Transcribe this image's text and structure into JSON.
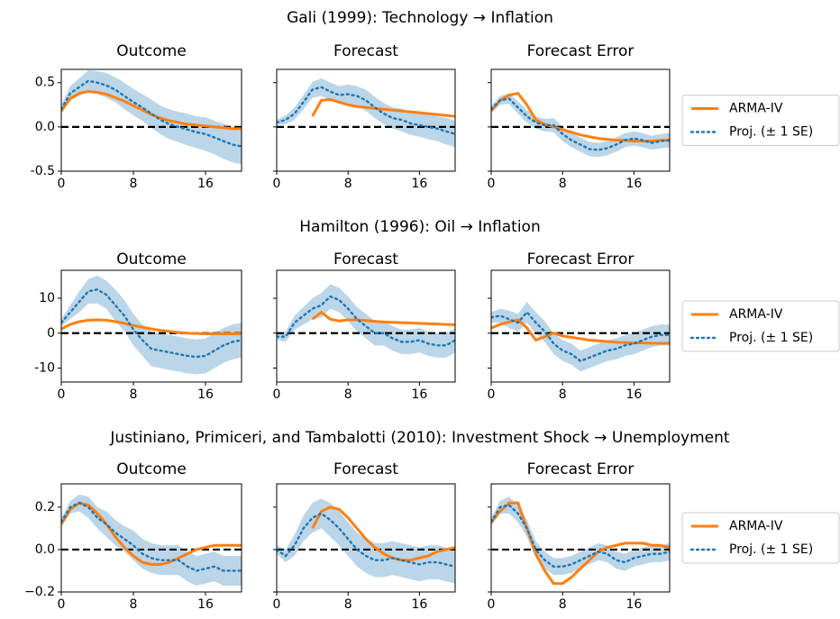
{
  "chart_data": [
    {
      "type": "line",
      "title": "Gali (1999): Technology → Inflation",
      "legend": "right",
      "reference_line": 0,
      "x": [
        0,
        1,
        2,
        3,
        4,
        5,
        6,
        7,
        8,
        9,
        10,
        11,
        12,
        13,
        14,
        15,
        16,
        17,
        18,
        19,
        20
      ],
      "xlim": [
        0,
        20
      ],
      "xticks": [
        0,
        8,
        16
      ],
      "ylim": [
        -0.5,
        0.65
      ],
      "yticks": [
        -0.5,
        {
          "value": 0,
          "label": "0.0"
        },
        0.5
      ],
      "series": [
        {
          "name": "ARMA-IV",
          "color": "#ff7f0e",
          "dashed": false
        },
        {
          "name": "Proj. (± 1 SE)",
          "color": "#1f77b4",
          "dashed": true
        }
      ],
      "panels": [
        {
          "title": "Outcome",
          "series": [
            {
              "values": [
                0.18,
                0.32,
                0.38,
                0.4,
                0.39,
                0.37,
                0.33,
                0.29,
                0.24,
                0.19,
                0.14,
                0.1,
                0.07,
                0.05,
                0.03,
                0.02,
                0.01,
                0.0,
                -0.01,
                -0.02,
                -0.02
              ]
            },
            {
              "values": [
                0.2,
                0.38,
                0.45,
                0.52,
                0.5,
                0.47,
                0.42,
                0.35,
                0.28,
                0.22,
                0.15,
                0.08,
                0.03,
                0.0,
                -0.03,
                -0.06,
                -0.08,
                -0.12,
                -0.16,
                -0.2,
                -0.22
              ],
              "se": [
                0.05,
                0.08,
                0.1,
                0.12,
                0.13,
                0.14,
                0.14,
                0.15,
                0.15,
                0.15,
                0.16,
                0.16,
                0.17,
                0.17,
                0.18,
                0.18,
                0.19,
                0.19,
                0.2,
                0.2,
                0.2
              ]
            }
          ]
        },
        {
          "title": "Forecast",
          "series": [
            {
              "values": [
                null,
                null,
                null,
                null,
                0.12,
                0.3,
                0.31,
                0.28,
                0.25,
                0.23,
                0.22,
                0.21,
                0.2,
                0.19,
                0.18,
                0.17,
                0.16,
                0.15,
                0.14,
                0.13,
                0.12
              ]
            },
            {
              "values": [
                0.05,
                0.08,
                0.15,
                0.28,
                0.42,
                0.45,
                0.4,
                0.36,
                0.37,
                0.35,
                0.3,
                0.22,
                0.15,
                0.1,
                0.08,
                0.04,
                0.02,
                0.0,
                -0.02,
                -0.05,
                -0.08
              ],
              "se": [
                0.03,
                0.05,
                0.07,
                0.08,
                0.09,
                0.1,
                0.1,
                0.1,
                0.11,
                0.11,
                0.12,
                0.12,
                0.12,
                0.12,
                0.13,
                0.13,
                0.13,
                0.14,
                0.14,
                0.15,
                0.15
              ]
            }
          ]
        },
        {
          "title": "Forecast Error",
          "series": [
            {
              "values": [
                0.18,
                0.3,
                0.36,
                0.38,
                0.25,
                0.08,
                0.03,
                0.0,
                -0.03,
                -0.06,
                -0.09,
                -0.11,
                -0.13,
                -0.14,
                -0.15,
                -0.15,
                -0.16,
                -0.16,
                -0.16,
                -0.15,
                -0.15
              ]
            },
            {
              "values": [
                0.2,
                0.3,
                0.32,
                0.22,
                0.12,
                0.05,
                0.02,
                0.02,
                -0.08,
                -0.15,
                -0.2,
                -0.25,
                -0.26,
                -0.24,
                -0.2,
                -0.15,
                -0.13,
                -0.15,
                -0.18,
                -0.16,
                -0.15
              ],
              "se": [
                0.04,
                0.05,
                0.06,
                0.07,
                0.07,
                0.07,
                0.07,
                0.08,
                0.08,
                0.08,
                0.08,
                0.08,
                0.08,
                0.08,
                0.08,
                0.08,
                0.08,
                0.08,
                0.08,
                0.08,
                0.08
              ]
            }
          ]
        }
      ]
    },
    {
      "type": "line",
      "title": "Hamilton (1996): Oil → Inflation",
      "legend": "right",
      "reference_line": 0,
      "x": [
        0,
        1,
        2,
        3,
        4,
        5,
        6,
        7,
        8,
        9,
        10,
        11,
        12,
        13,
        14,
        15,
        16,
        17,
        18,
        19,
        20
      ],
      "xlim": [
        0,
        20
      ],
      "xticks": [
        0,
        8,
        16
      ],
      "ylim": [
        -14,
        18
      ],
      "yticks": [
        -10,
        0,
        10
      ],
      "series": [
        {
          "name": "ARMA-IV",
          "color": "#ff7f0e",
          "dashed": false
        },
        {
          "name": "Proj. (± 1 SE)",
          "color": "#1f77b4",
          "dashed": true
        }
      ],
      "panels": [
        {
          "title": "Outcome",
          "series": [
            {
              "values": [
                1.2,
                2.5,
                3.3,
                3.7,
                3.8,
                3.7,
                3.3,
                2.8,
                2.2,
                1.7,
                1.2,
                0.8,
                0.5,
                0.2,
                0,
                -0.1,
                -0.2,
                -0.2,
                -0.2,
                -0.2,
                -0.2
              ]
            },
            {
              "values": [
                3,
                6,
                9,
                12,
                12.5,
                11,
                8,
                5,
                1,
                -2,
                -4.5,
                -5,
                -5.5,
                -6,
                -6.5,
                -6.8,
                -6.5,
                -5,
                -3.5,
                -2.5,
                -2
              ],
              "se": [
                1,
                2,
                3,
                3.5,
                4,
                4,
                4.5,
                4.5,
                4.5,
                4.5,
                5,
                5,
                5,
                5,
                5,
                5,
                5,
                5,
                5,
                5,
                5
              ]
            }
          ]
        },
        {
          "title": "Forecast",
          "series": [
            {
              "values": [
                null,
                null,
                null,
                null,
                4,
                6,
                4,
                3.5,
                3.8,
                3.8,
                3.6,
                3.4,
                3.2,
                3.1,
                3.0,
                2.9,
                2.8,
                2.7,
                2.6,
                2.5,
                2.4
              ]
            },
            {
              "values": [
                -1,
                -1,
                3,
                5,
                7,
                8,
                10.5,
                9.5,
                7,
                4,
                2,
                0,
                0,
                -1.5,
                -2.5,
                -2.5,
                -2,
                -3,
                -3.5,
                -3.5,
                -2
              ],
              "se": [
                0.8,
                1.5,
                2,
                2.5,
                3,
                3.5,
                3.5,
                3.5,
                3.5,
                3.5,
                3.5,
                3.5,
                3.5,
                3.5,
                3.5,
                3.5,
                3.5,
                3.5,
                3.5,
                3.5,
                3.5
              ]
            }
          ]
        },
        {
          "title": "Forecast Error",
          "series": [
            {
              "values": [
                1.5,
                2.5,
                3.2,
                3.8,
                1.5,
                -2,
                -1,
                0,
                -0.8,
                -1.2,
                -1.6,
                -2,
                -2.2,
                -2.4,
                -2.6,
                -2.7,
                -2.8,
                -2.8,
                -2.9,
                -2.9,
                -2.9
              ]
            },
            {
              "values": [
                4.5,
                5,
                4,
                3,
                6,
                3,
                0.5,
                -3,
                -5,
                -6,
                -8,
                -7,
                -6,
                -5,
                -4.5,
                -3.5,
                -3,
                -2,
                -1,
                -0.5,
                -0.5
              ],
              "se": [
                1.5,
                2,
                2.5,
                2.5,
                3,
                3,
                3,
                3,
                3,
                3,
                3,
                3,
                3,
                3,
                3,
                3,
                3,
                3,
                3,
                3,
                3
              ]
            }
          ]
        }
      ]
    },
    {
      "type": "line",
      "title": "Justiniano, Primiceri, and Tambalotti (2010): Investment Shock → Unemployment",
      "legend": "right",
      "reference_line": 0,
      "x": [
        0,
        1,
        2,
        3,
        4,
        5,
        6,
        7,
        8,
        9,
        10,
        11,
        12,
        13,
        14,
        15,
        16,
        17,
        18,
        19,
        20
      ],
      "xlim": [
        0,
        20
      ],
      "xticks": [
        0,
        8,
        16
      ],
      "ylim": [
        -0.2,
        0.31
      ],
      "yticks": [
        {
          "value": -0.2,
          "label": "−0.2"
        },
        {
          "value": 0,
          "label": "0.0"
        },
        0.2
      ],
      "series": [
        {
          "name": "ARMA-IV",
          "color": "#ff7f0e",
          "dashed": false
        },
        {
          "name": "Proj. (± 1 SE)",
          "color": "#1f77b4",
          "dashed": true
        }
      ],
      "panels": [
        {
          "title": "Outcome",
          "series": [
            {
              "values": [
                0.12,
                0.19,
                0.22,
                0.21,
                0.17,
                0.12,
                0.06,
                0.01,
                -0.03,
                -0.06,
                -0.07,
                -0.07,
                -0.06,
                -0.04,
                -0.02,
                0,
                0.01,
                0.02,
                0.02,
                0.02,
                0.02
              ]
            },
            {
              "values": [
                0.13,
                0.2,
                0.22,
                0.2,
                0.15,
                0.12,
                0.08,
                0.05,
                0.02,
                -0.02,
                -0.04,
                -0.05,
                -0.05,
                -0.05,
                -0.08,
                -0.1,
                -0.09,
                -0.08,
                -0.1,
                -0.1,
                -0.1
              ],
              "se": [
                0.02,
                0.03,
                0.04,
                0.05,
                0.05,
                0.06,
                0.06,
                0.06,
                0.07,
                0.07,
                0.07,
                0.07,
                0.07,
                0.07,
                0.07,
                0.07,
                0.07,
                0.07,
                0.07,
                0.07,
                0.07
              ]
            }
          ]
        },
        {
          "title": "Forecast",
          "series": [
            {
              "values": [
                null,
                null,
                null,
                null,
                0.1,
                0.18,
                0.2,
                0.19,
                0.15,
                0.1,
                0.05,
                0.01,
                -0.02,
                -0.04,
                -0.05,
                -0.05,
                -0.04,
                -0.03,
                -0.01,
                0.0,
                0.01
              ]
            },
            {
              "values": [
                0,
                -0.03,
                0.02,
                0.1,
                0.15,
                0.17,
                0.14,
                0.1,
                0.05,
                0.0,
                -0.03,
                -0.05,
                -0.05,
                -0.04,
                -0.05,
                -0.06,
                -0.07,
                -0.06,
                -0.06,
                -0.07,
                -0.08
              ],
              "se": [
                0.02,
                0.03,
                0.05,
                0.06,
                0.07,
                0.07,
                0.08,
                0.08,
                0.08,
                0.08,
                0.08,
                0.08,
                0.08,
                0.08,
                0.08,
                0.08,
                0.08,
                0.08,
                0.08,
                0.08,
                0.08
              ]
            }
          ]
        },
        {
          "title": "Forecast Error",
          "series": [
            {
              "values": [
                0.13,
                0.18,
                0.22,
                0.22,
                0.1,
                -0.02,
                -0.1,
                -0.16,
                -0.16,
                -0.13,
                -0.09,
                -0.05,
                -0.01,
                0.01,
                0.02,
                0.03,
                0.03,
                0.03,
                0.02,
                0.02,
                0.01
              ]
            },
            {
              "values": [
                0.13,
                0.2,
                0.21,
                0.17,
                0.1,
                0.0,
                -0.05,
                -0.08,
                -0.08,
                -0.07,
                -0.05,
                -0.03,
                -0.01,
                -0.02,
                -0.05,
                -0.06,
                -0.04,
                -0.03,
                -0.02,
                -0.02,
                -0.01
              ],
              "se": [
                0.02,
                0.03,
                0.04,
                0.04,
                0.04,
                0.04,
                0.04,
                0.04,
                0.04,
                0.04,
                0.04,
                0.04,
                0.04,
                0.04,
                0.04,
                0.04,
                0.04,
                0.04,
                0.04,
                0.04,
                0.04
              ]
            }
          ]
        }
      ]
    }
  ]
}
